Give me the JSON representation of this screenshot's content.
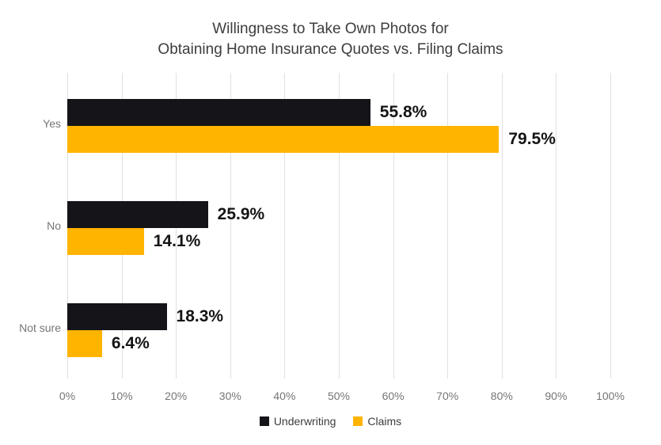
{
  "title": {
    "line1": "Willingness to Take Own Photos for",
    "line2": "Obtaining Home Insurance Quotes vs. Filing Claims"
  },
  "chart_data": {
    "type": "bar",
    "orientation": "horizontal",
    "title": "Willingness to Take Own Photos for Obtaining Home Insurance Quotes vs. Filing Claims",
    "categories": [
      "Yes",
      "No",
      "Not sure"
    ],
    "series": [
      {
        "name": "Underwriting",
        "color": "#151419",
        "values": [
          55.8,
          25.9,
          18.3
        ],
        "value_labels": [
          "55.8%",
          "25.9%",
          "18.3%"
        ]
      },
      {
        "name": "Claims",
        "color": "#ffb400",
        "values": [
          79.5,
          14.1,
          6.4
        ],
        "value_labels": [
          "79.5%",
          "14.1%",
          "6.4%"
        ]
      }
    ],
    "x_ticks": [
      "0%",
      "10%",
      "20%",
      "30%",
      "40%",
      "50%",
      "60%",
      "70%",
      "80%",
      "90%",
      "100%"
    ],
    "xlim": [
      0,
      100
    ],
    "grid": "vertical",
    "legend_position": "bottom",
    "colors": {
      "gridline": "#e0e0e0",
      "axis_text": "#757575",
      "value_text": "#141414",
      "title_text": "#3d3d3d",
      "background": "#ffffff"
    }
  }
}
